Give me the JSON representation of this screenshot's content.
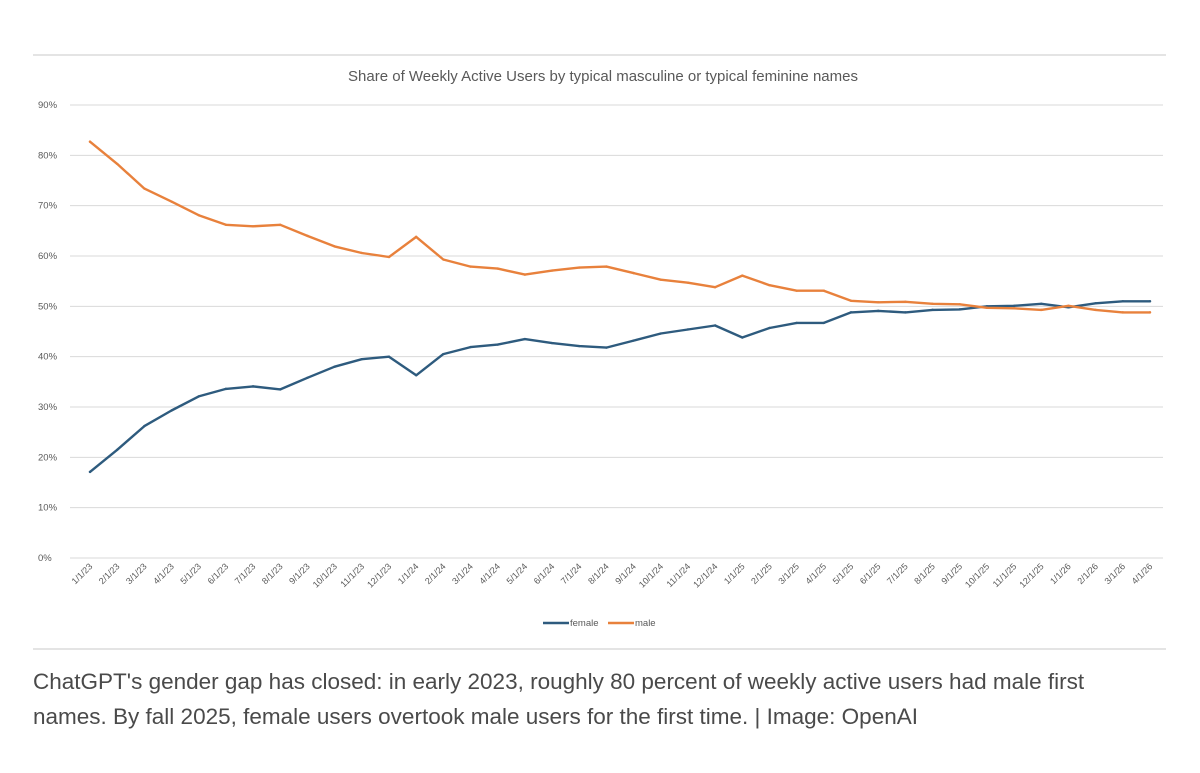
{
  "chart_data": {
    "type": "line",
    "title": "Share of Weekly Active Users by typical masculine or typical feminine names",
    "xlabel": "",
    "ylabel": "",
    "ylim": [
      0,
      90
    ],
    "grid": true,
    "legend_position": "bottom-center",
    "y_ticks": [
      "0%",
      "10%",
      "20%",
      "30%",
      "40%",
      "50%",
      "60%",
      "70%",
      "80%",
      "90%"
    ],
    "y_tick_values": [
      0,
      10,
      20,
      30,
      40,
      50,
      60,
      70,
      80,
      90
    ],
    "categories": [
      "1/1/23",
      "2/1/23",
      "3/1/23",
      "4/1/23",
      "5/1/23",
      "6/1/23",
      "7/1/23",
      "8/1/23",
      "9/1/23",
      "10/1/23",
      "11/1/23",
      "12/1/23",
      "1/1/24",
      "2/1/24",
      "3/1/24",
      "4/1/24",
      "5/1/24",
      "6/1/24",
      "7/1/24",
      "8/1/24",
      "9/1/24",
      "10/1/24",
      "11/1/24",
      "12/1/24",
      "1/1/25",
      "2/1/25",
      "3/1/25",
      "4/1/25",
      "5/1/25",
      "6/1/25",
      "7/1/25",
      "8/1/25",
      "9/1/25",
      "10/1/25",
      "11/1/25",
      "12/1/25",
      "1/1/26",
      "2/1/26",
      "3/1/26",
      "4/1/26"
    ],
    "series": [
      {
        "name": "female",
        "color": "#2e5b7e",
        "values": [
          17.1,
          21.5,
          26.2,
          29.3,
          32.1,
          33.6,
          34.1,
          33.5,
          35.8,
          38.0,
          39.5,
          40.0,
          36.3,
          40.5,
          41.9,
          42.4,
          43.5,
          42.7,
          42.1,
          41.8,
          43.2,
          44.6,
          45.4,
          46.2,
          43.8,
          45.7,
          46.7,
          46.7,
          48.8,
          49.1,
          48.8,
          49.3,
          49.4,
          50.0,
          50.1,
          50.5,
          49.8,
          50.6,
          51.0,
          51.0
        ]
      },
      {
        "name": "male",
        "color": "#e8813c",
        "values": [
          82.7,
          78.3,
          73.4,
          70.8,
          68.1,
          66.2,
          65.9,
          66.2,
          64.0,
          61.9,
          60.6,
          59.8,
          63.8,
          59.3,
          57.9,
          57.5,
          56.3,
          57.1,
          57.7,
          57.9,
          56.6,
          55.3,
          54.7,
          53.8,
          56.1,
          54.2,
          53.1,
          53.1,
          51.1,
          50.8,
          50.9,
          50.5,
          50.4,
          49.7,
          49.6,
          49.3,
          50.1,
          49.3,
          48.8,
          48.8
        ]
      }
    ]
  },
  "caption": {
    "line1": "ChatGPT's gender gap has closed: in early 2023, roughly 80 percent of weekly active users had male first",
    "line2": "names. By fall 2025, female users overtook male users for the first time. | Image: OpenAI"
  },
  "colors": {
    "female": "#2e5b7e",
    "male": "#e8813c",
    "gridline": "#d9d9d9",
    "frame_rule": "#c8c8c8",
    "axis_text": "#595959",
    "caption_text": "#4a4a4a"
  }
}
